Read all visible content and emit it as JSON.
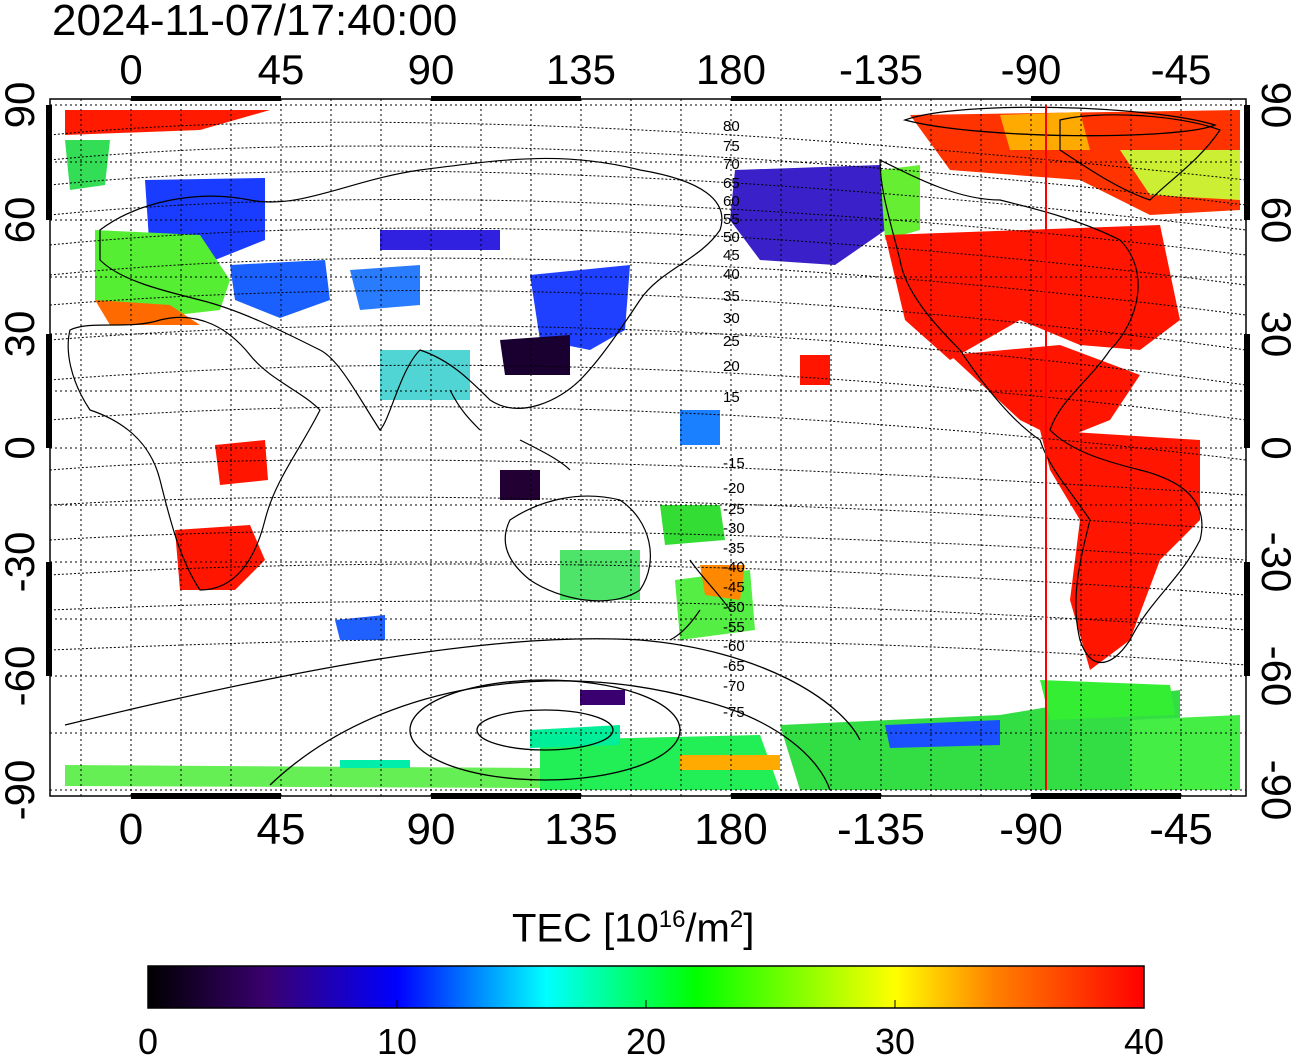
{
  "title": "2024-11-07/17:40:00",
  "map": {
    "top_lon_ticks": [
      "0",
      "45",
      "90",
      "135",
      "180",
      "-135",
      "-90",
      "-45"
    ],
    "bottom_lon_ticks": [
      "0",
      "45",
      "90",
      "135",
      "180",
      "-135",
      "-90",
      "-45"
    ],
    "lat_ticks": [
      "90",
      "60",
      "30",
      "0",
      "-30",
      "-60",
      "-90"
    ],
    "contour_labels": [
      "80",
      "75",
      "70",
      "65",
      "60",
      "55",
      "50",
      "45",
      "40",
      "35",
      "30",
      "25",
      "20",
      "15",
      "-15",
      "-20",
      "-25",
      "-30",
      "-35",
      "-40",
      "-45",
      "-50",
      "-55",
      "-60",
      "-65",
      "-70",
      "-75"
    ],
    "marker_line_lon": -86,
    "marker_line_color": "#ff0000"
  },
  "colorbar": {
    "label_main": "TEC  [10",
    "label_sup1": "16",
    "label_mid": "/m",
    "label_sup2": "2",
    "label_end": "]",
    "min": 0,
    "max": 40,
    "tick_labels": [
      "0",
      "10",
      "20",
      "30",
      "40"
    ],
    "colors": [
      "#000000",
      "#3a0070",
      "#0000ff",
      "#00ffff",
      "#00ff00",
      "#ffff00",
      "#ff0000"
    ]
  }
}
